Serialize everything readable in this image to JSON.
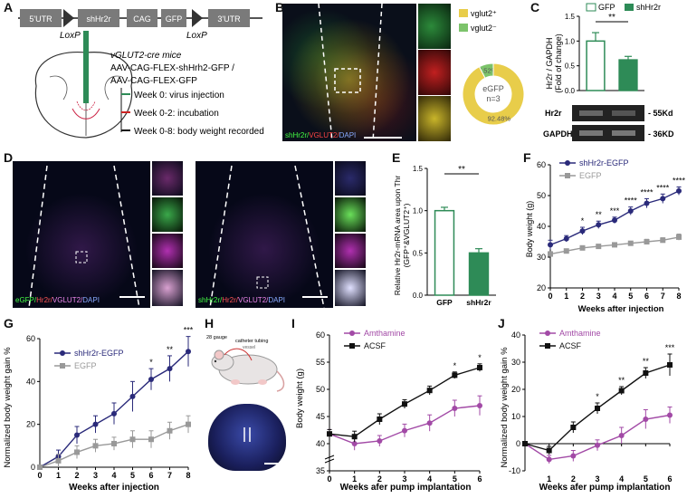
{
  "labels": {
    "A": "A",
    "B": "B",
    "C": "C",
    "D": "D",
    "E": "E",
    "F": "F",
    "G": "G",
    "H": "H",
    "I": "I",
    "J": "J"
  },
  "panelA": {
    "construct": [
      "5'UTR",
      "shHr2r",
      "CAG",
      "GFP",
      "3'UTR"
    ],
    "loxp": "LoxP",
    "mice": "vGLUT2-cre mice",
    "virus1": "AAV-CAG-FLEX-shHrh2-GFP /",
    "virus2": "AAV-CAG-FLEX-GFP",
    "timeline": [
      {
        "text": "Week 0: virus injection",
        "color": "#2e8b57"
      },
      {
        "text": "Week 0-2: incubation",
        "color": "#cc2222"
      },
      {
        "text": "Week 0-8: body weight recorded",
        "color": "#111111"
      }
    ]
  },
  "panelB": {
    "stain": [
      "shHr2r/",
      "VGLUT2/",
      "DAPI"
    ],
    "legend": [
      "vglut2⁺",
      "vglut2⁻"
    ],
    "donut": {
      "center1": "eGFP",
      "center2": "n=3",
      "slices": [
        {
          "name": "vglut2+",
          "value": 92.48,
          "label": "92.48%",
          "color": "#e8cd4a"
        },
        {
          "name": "vglut2-",
          "value": 7.52,
          "label": "7.52%",
          "color": "#7cc36b"
        }
      ]
    }
  },
  "panelC": {
    "legend": [
      "GFP",
      "shHr2r"
    ],
    "ylabel1": "Hr2r / GAPDH",
    "ylabel2": "(Fold of change)",
    "sig": "**",
    "blot": [
      {
        "name": "Hr2r",
        "size": "- 55Kd"
      },
      {
        "name": "GAPDH",
        "size": "- 36KD"
      }
    ]
  },
  "panelD": {
    "stain_left": [
      "eGFP/",
      "Hr2r/",
      "VGLUT2/",
      "DAPI"
    ],
    "stain_right": [
      "shHr2r/",
      "Hr2r/",
      "VGLUT2/",
      "DAPI"
    ]
  },
  "panelE": {
    "ylabel1": "Relative Hr2r-mRNA area upon Thr",
    "ylabel2": "(GFP⁺&VGLUT2⁺)",
    "sig": "**"
  },
  "panelF": {
    "xlabel": "Weeks after injection",
    "ylabel": "Body weight (g)",
    "legend": [
      "shHr2r-EGFP",
      "EGFP"
    ]
  },
  "panelG": {
    "xlabel": "Weeks after injection",
    "ylabel": "Normalized body weight gain %",
    "legend": [
      "shHr2r-EGFP",
      "EGFP"
    ]
  },
  "panelH": {
    "gauge": "28 gauge",
    "tubing": "catheter tubing",
    "vessel": "vessel"
  },
  "panelI": {
    "xlabel": "Weeks afer pump implantation",
    "ylabel": "Body weight (g)",
    "legend": [
      "Amthamine",
      "ACSF"
    ]
  },
  "panelJ": {
    "xlabel": "Weeks afer pump implantation",
    "ylabel": "Normalized body weight gain %",
    "legend": [
      "Amthamine",
      "ACSF"
    ]
  },
  "chart_data": [
    {
      "id": "C",
      "type": "bar",
      "categories": [
        "GFP",
        "shHr2r"
      ],
      "values": [
        1.0,
        0.62
      ],
      "errors": [
        0.17,
        0.07
      ],
      "ylim": [
        0,
        1.5
      ],
      "yticks": [
        0,
        0.5,
        1.0,
        1.5
      ],
      "colors": [
        "#ffffff",
        "#2e8b57"
      ],
      "edge": "#2e8b57"
    },
    {
      "id": "E",
      "type": "bar",
      "categories": [
        "GFP",
        "shHr2r"
      ],
      "values": [
        1.0,
        0.5
      ],
      "errors": [
        0.04,
        0.05
      ],
      "ylim": [
        0,
        1.5
      ],
      "yticks": [
        0,
        0.5,
        1.0,
        1.5
      ],
      "colors": [
        "#ffffff",
        "#2e8b57"
      ],
      "edge": "#2e8b57"
    },
    {
      "id": "F",
      "type": "line",
      "x": [
        0,
        1,
        2,
        3,
        4,
        5,
        6,
        7,
        8
      ],
      "ylim": [
        20,
        60
      ],
      "yticks": [
        20,
        30,
        40,
        50,
        60
      ],
      "series": [
        {
          "name": "shHr2r-EGFP",
          "color": "#2a2a7a",
          "marker": "circle",
          "values": [
            34,
            36,
            38.5,
            40.5,
            42,
            45,
            47.5,
            49,
            51.5
          ],
          "errors": [
            1.5,
            1,
            1.2,
            1.2,
            1,
            1.3,
            1.5,
            1.5,
            1.3
          ]
        },
        {
          "name": "EGFP",
          "color": "#999999",
          "marker": "square",
          "values": [
            31,
            32,
            33,
            33.5,
            34,
            34.5,
            35,
            35.5,
            36.5
          ],
          "errors": [
            0.8,
            0.6,
            0.6,
            0.6,
            0.6,
            0.6,
            0.8,
            0.8,
            1
          ]
        }
      ],
      "sig": [
        {
          "x": 2,
          "text": "*"
        },
        {
          "x": 3,
          "text": "**"
        },
        {
          "x": 4,
          "text": "***"
        },
        {
          "x": 5,
          "text": "****"
        },
        {
          "x": 6,
          "text": "****"
        },
        {
          "x": 7,
          "text": "****"
        },
        {
          "x": 8,
          "text": "****"
        }
      ]
    },
    {
      "id": "G",
      "type": "line",
      "x": [
        0,
        1,
        2,
        3,
        4,
        5,
        6,
        7,
        8
      ],
      "ylim": [
        0,
        60
      ],
      "yticks": [
        0,
        20,
        40,
        60
      ],
      "series": [
        {
          "name": "shHr2r-EGFP",
          "color": "#2a2a7a",
          "marker": "circle",
          "values": [
            0,
            5,
            15,
            20,
            25,
            33,
            41,
            46,
            54
          ],
          "errors": [
            0,
            3,
            4,
            4,
            5,
            7,
            5,
            6,
            7
          ]
        },
        {
          "name": "EGFP",
          "color": "#999999",
          "marker": "square",
          "values": [
            0,
            3,
            7,
            10,
            11,
            13,
            13,
            17,
            20
          ],
          "errors": [
            0,
            3,
            3,
            3,
            3,
            4,
            4,
            4,
            4
          ]
        }
      ],
      "sig": [
        {
          "x": 6,
          "text": "*"
        },
        {
          "x": 7,
          "text": "**"
        },
        {
          "x": 8,
          "text": "***"
        }
      ]
    },
    {
      "id": "I",
      "type": "line",
      "x": [
        0,
        1,
        2,
        3,
        4,
        5,
        6
      ],
      "ylim": [
        35,
        60
      ],
      "yticks": [
        35,
        40,
        45,
        50,
        55,
        60
      ],
      "break": true,
      "series": [
        {
          "name": "Amthamine",
          "color": "#a24aa6",
          "marker": "circle",
          "values": [
            41.8,
            40,
            40.5,
            42.4,
            43.8,
            46.5,
            47
          ],
          "errors": [
            0.8,
            1.2,
            1,
            1.2,
            1.5,
            1.5,
            1.8
          ]
        },
        {
          "name": "ACSF",
          "color": "#111111",
          "marker": "square",
          "values": [
            41.8,
            41.3,
            44.5,
            47.3,
            49.8,
            52.6,
            54
          ],
          "errors": [
            0.8,
            1,
            1,
            0.8,
            0.8,
            0.6,
            0.7
          ]
        }
      ],
      "sig": [
        {
          "x": 5,
          "text": "*"
        },
        {
          "x": 6,
          "text": "*"
        }
      ]
    },
    {
      "id": "J",
      "type": "line",
      "x": [
        0,
        1,
        2,
        3,
        4,
        5,
        6
      ],
      "ylim": [
        -10,
        40
      ],
      "yticks": [
        -10,
        0,
        10,
        20,
        30,
        40
      ],
      "series": [
        {
          "name": "Amthamine",
          "color": "#a24aa6",
          "marker": "circle",
          "values": [
            0,
            -5.8,
            -4.5,
            -0.6,
            3,
            9,
            10.5
          ],
          "errors": [
            0,
            1.5,
            2,
            2,
            3,
            3.5,
            3
          ]
        },
        {
          "name": "ACSF",
          "color": "#111111",
          "marker": "square",
          "values": [
            0,
            -2.5,
            6,
            13,
            19.5,
            26,
            29
          ],
          "errors": [
            0,
            1.5,
            2,
            2,
            1.5,
            2,
            4
          ]
        }
      ],
      "sig": [
        {
          "x": 3,
          "text": "*"
        },
        {
          "x": 4,
          "text": "**"
        },
        {
          "x": 5,
          "text": "**"
        },
        {
          "x": 6,
          "text": "***"
        }
      ]
    }
  ]
}
